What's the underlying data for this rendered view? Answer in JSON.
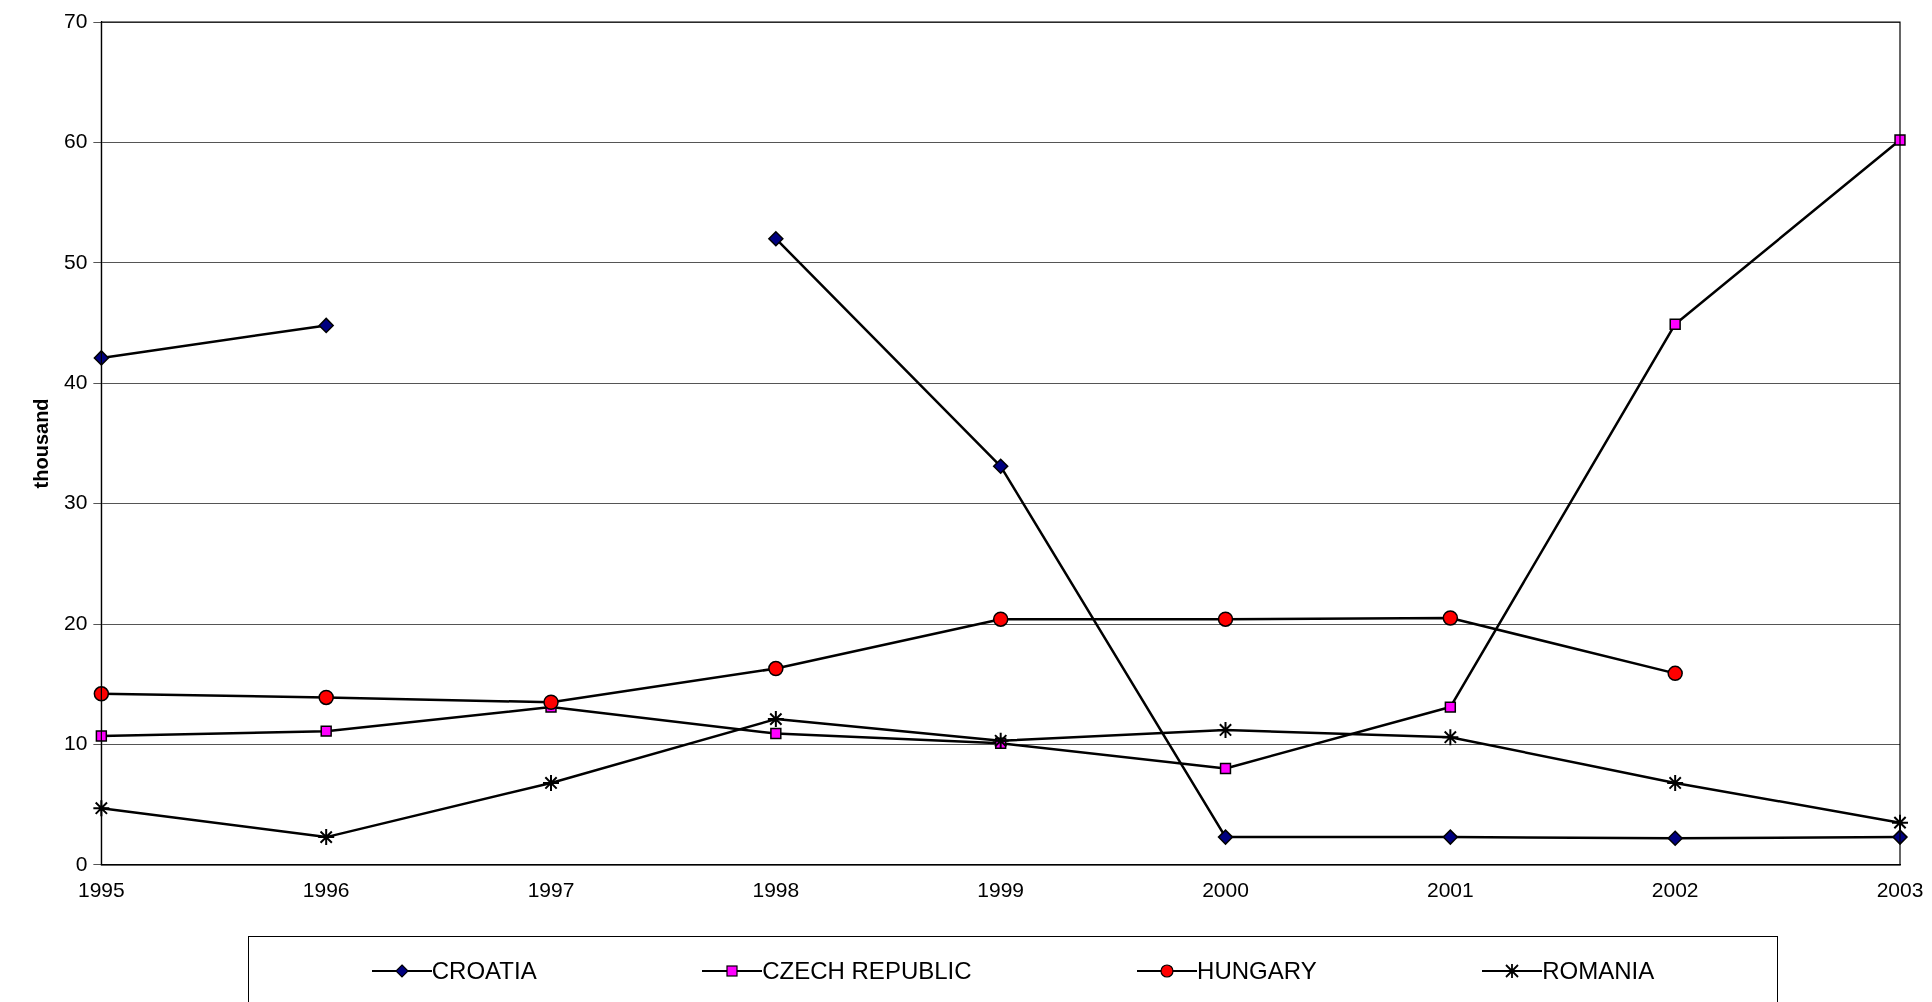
{
  "chart_data": {
    "type": "line",
    "ylabel": "thousand",
    "categories": [
      "1995",
      "1996",
      "1997",
      "1998",
      "1999",
      "2000",
      "2001",
      "2002",
      "2003"
    ],
    "series": [
      {
        "name": "CROATIA",
        "color": "#000080",
        "marker": "diamond",
        "values": [
          42.1,
          44.8,
          null,
          52.0,
          33.1,
          2.3,
          2.3,
          2.2,
          2.3
        ]
      },
      {
        "name": "CZECH REPUBLIC",
        "color": "#ff00ff",
        "marker": "square",
        "values": [
          10.7,
          11.1,
          13.1,
          10.9,
          10.1,
          8.0,
          13.1,
          44.9,
          60.2
        ]
      },
      {
        "name": "HUNGARY",
        "color": "#ff0000",
        "marker": "circle",
        "values": [
          14.2,
          13.9,
          13.5,
          16.3,
          20.4,
          20.4,
          20.5,
          15.9,
          null
        ]
      },
      {
        "name": "ROMANIA",
        "color": "#000000",
        "marker": "cross",
        "values": [
          4.7,
          2.3,
          6.8,
          12.1,
          10.3,
          11.2,
          10.6,
          6.8,
          3.5
        ]
      }
    ],
    "ylim": [
      0,
      70
    ],
    "yticks": [
      0,
      10,
      20,
      30,
      40,
      50,
      60,
      70
    ],
    "grid": "y",
    "legend": "bottom",
    "line_style": "solid"
  }
}
